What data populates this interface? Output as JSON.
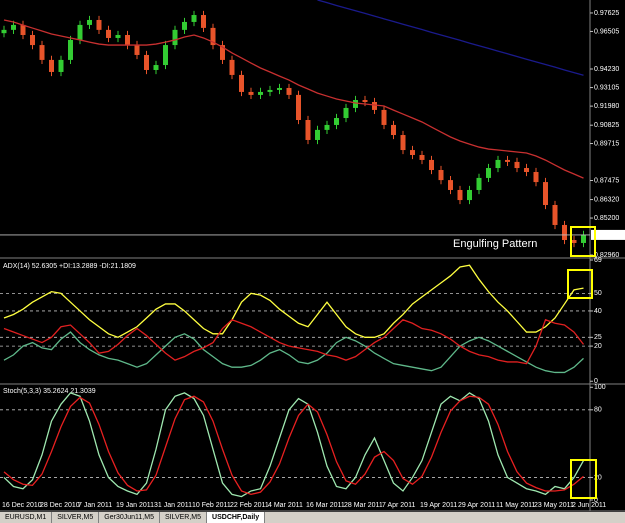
{
  "chart_data": [
    {
      "type": "candlestick",
      "up_color": "#33cc33",
      "down_color": "#e8542a",
      "open": [
        0.964,
        0.966,
        0.969,
        0.9629,
        0.9568,
        0.9478,
        0.9405,
        0.9478,
        0.9599,
        0.969,
        0.972,
        0.966,
        0.9611,
        0.9629,
        0.9568,
        0.9508,
        0.9417,
        0.9447,
        0.9568,
        0.966,
        0.9708,
        0.975,
        0.9672,
        0.9568,
        0.9478,
        0.9387,
        0.9284,
        0.9266,
        0.9284,
        0.9296,
        0.9308,
        0.9266,
        0.9114,
        0.8993,
        0.9054,
        0.9084,
        0.9126,
        0.9187,
        0.9235,
        0.9223,
        0.9175,
        0.9084,
        0.9023,
        0.8932,
        0.8902,
        0.8872,
        0.8811,
        0.875,
        0.869,
        0.8629,
        0.869,
        0.8763,
        0.8823,
        0.8872,
        0.886,
        0.8823,
        0.8799,
        0.8738,
        0.8599,
        0.8478,
        0.8387,
        0.8369
      ],
      "high": [
        0.9685,
        0.9715,
        0.9715,
        0.9654,
        0.9593,
        0.9503,
        0.9503,
        0.9624,
        0.9715,
        0.9745,
        0.9745,
        0.9685,
        0.9654,
        0.9654,
        0.9593,
        0.9533,
        0.9472,
        0.9593,
        0.9685,
        0.9733,
        0.9775,
        0.9775,
        0.9697,
        0.9593,
        0.9503,
        0.9412,
        0.9309,
        0.9309,
        0.9321,
        0.9333,
        0.9333,
        0.9291,
        0.9139,
        0.9079,
        0.9109,
        0.9151,
        0.9212,
        0.926,
        0.926,
        0.9248,
        0.92,
        0.9109,
        0.9048,
        0.8957,
        0.8927,
        0.8897,
        0.8836,
        0.8775,
        0.8715,
        0.8715,
        0.8788,
        0.8848,
        0.8897,
        0.8897,
        0.8885,
        0.8848,
        0.8824,
        0.8763,
        0.8624,
        0.8503,
        0.8412,
        0.8443
      ],
      "low": [
        0.9615,
        0.9635,
        0.9604,
        0.9543,
        0.9453,
        0.938,
        0.938,
        0.9453,
        0.9574,
        0.9665,
        0.9635,
        0.9586,
        0.9586,
        0.9543,
        0.9483,
        0.9392,
        0.9392,
        0.9422,
        0.9543,
        0.9635,
        0.9683,
        0.9647,
        0.9543,
        0.9453,
        0.9362,
        0.9259,
        0.9241,
        0.9241,
        0.9259,
        0.9271,
        0.9241,
        0.9089,
        0.8968,
        0.8968,
        0.9029,
        0.9059,
        0.9101,
        0.9162,
        0.9198,
        0.915,
        0.9059,
        0.8998,
        0.8907,
        0.8877,
        0.8847,
        0.8786,
        0.8725,
        0.8665,
        0.8604,
        0.8604,
        0.8665,
        0.8738,
        0.8798,
        0.8835,
        0.8798,
        0.8774,
        0.8713,
        0.8574,
        0.8453,
        0.8362,
        0.8344,
        0.8344
      ],
      "close": [
        0.966,
        0.969,
        0.9629,
        0.9568,
        0.9478,
        0.9405,
        0.9478,
        0.9599,
        0.969,
        0.972,
        0.966,
        0.9611,
        0.9629,
        0.9568,
        0.9508,
        0.9417,
        0.9447,
        0.9568,
        0.966,
        0.9708,
        0.975,
        0.9672,
        0.9568,
        0.9478,
        0.9387,
        0.9284,
        0.9266,
        0.9284,
        0.9296,
        0.9308,
        0.9266,
        0.9114,
        0.8993,
        0.9054,
        0.9084,
        0.9126,
        0.9187,
        0.9235,
        0.9223,
        0.9175,
        0.9084,
        0.9023,
        0.8932,
        0.8902,
        0.8872,
        0.8811,
        0.875,
        0.869,
        0.8629,
        0.869,
        0.8763,
        0.8823,
        0.8872,
        0.886,
        0.8823,
        0.8799,
        0.8738,
        0.8599,
        0.8478,
        0.8387,
        0.8369,
        0.8418
      ],
      "series": [
        {
          "color": "#c83030",
          "values": [
            0.972,
            0.9708,
            0.9689,
            0.9671,
            0.9653,
            0.9635,
            0.9623,
            0.9611,
            0.9599,
            0.9586,
            0.9574,
            0.9568,
            0.9568,
            0.9568,
            0.9568,
            0.9568,
            0.9574,
            0.9586,
            0.9599,
            0.9617,
            0.9629,
            0.9611,
            0.9586,
            0.9556,
            0.952,
            0.949,
            0.9459,
            0.9429,
            0.9405,
            0.938,
            0.9356,
            0.9326,
            0.9302,
            0.9277,
            0.9259,
            0.9241,
            0.9229,
            0.9217,
            0.9211,
            0.9205,
            0.9199,
            0.9174,
            0.915,
            0.9126,
            0.9102,
            0.9071,
            0.9041,
            0.9011,
            0.8987,
            0.8968,
            0.895,
            0.8938,
            0.8932,
            0.8926,
            0.892,
            0.8914,
            0.8896,
            0.8871,
            0.8841,
            0.8811,
            0.8787,
            0.8762
          ]
        },
        {
          "color": "#1a1a8c",
          "values": [
            null,
            null,
            null,
            null,
            null,
            null,
            null,
            null,
            null,
            null,
            null,
            null,
            null,
            null,
            null,
            null,
            null,
            null,
            null,
            null,
            null,
            null,
            null,
            null,
            null,
            null,
            null,
            null,
            null,
            null,
            null,
            null,
            null,
            0.9841,
            0.9825,
            0.9808,
            0.9792,
            0.9776,
            0.976,
            0.9743,
            0.9727,
            0.9711,
            0.9694,
            0.9678,
            0.9662,
            0.9645,
            0.9629,
            0.9613,
            0.9597,
            0.958,
            0.9564,
            0.9548,
            0.9531,
            0.9515,
            0.9499,
            0.9482,
            0.9466,
            0.945,
            0.9434,
            0.9417,
            0.9401,
            0.9385
          ]
        }
      ],
      "ylim": [
        0.8284,
        0.9841
      ],
      "yticks": [
        0.97625,
        0.96505,
        {
          "value": 0.9423,
          "label": "0.94230"
        },
        0.93105,
        {
          "value": 0.9198,
          "label": "0.91980"
        },
        0.90825,
        0.89715,
        0.87475,
        {
          "value": 0.8632,
          "label": "0.86320"
        },
        {
          "value": 0.852,
          "label": "0.85200"
        },
        {
          "value": 0.8296,
          "label": "0.82960"
        }
      ],
      "current_price": 0.84178,
      "annotation": "Engulfing Pattern"
    },
    {
      "type": "line",
      "title": "ADX(14) 52.6305 +DI:13.2889 -DI:21.1809",
      "series": [
        {
          "color": "#ffff40",
          "values": [
            36,
            38,
            41,
            45,
            48,
            51,
            50,
            45,
            40,
            35,
            31,
            27,
            25,
            28,
            31,
            36,
            41,
            44,
            44,
            40,
            35,
            30,
            27,
            27,
            35,
            45,
            50,
            49,
            46,
            41,
            37,
            33,
            31,
            38,
            45,
            38,
            31,
            27,
            25,
            25,
            27,
            33,
            38,
            44,
            48,
            52,
            56,
            60,
            65,
            66,
            58,
            51,
            45,
            40,
            34,
            28,
            28,
            31,
            36,
            44,
            52,
            53
          ]
        },
        {
          "color": "#5fb88a",
          "values": [
            12,
            15,
            20,
            22,
            19,
            18,
            24,
            28,
            22,
            18,
            15,
            13,
            12,
            10,
            8,
            10,
            15,
            20,
            25,
            27,
            24,
            18,
            14,
            10,
            8,
            8,
            9,
            12,
            16,
            18,
            15,
            11,
            10,
            12,
            16,
            22,
            25,
            23,
            20,
            16,
            13,
            10,
            9,
            8,
            7,
            6,
            8,
            14,
            20,
            23,
            25,
            23,
            20,
            17,
            14,
            11,
            8,
            6,
            5,
            5,
            8,
            13
          ]
        },
        {
          "color": "#e02020",
          "values": [
            30,
            28,
            26,
            24,
            22,
            25,
            31,
            32,
            27,
            22,
            16,
            17,
            21,
            26,
            30,
            26,
            21,
            16,
            12,
            14,
            17,
            19,
            22,
            30,
            35,
            33,
            31,
            28,
            25,
            22,
            20,
            19,
            18,
            17,
            15,
            14,
            12,
            14,
            18,
            22,
            25,
            30,
            35,
            33,
            30,
            29,
            27,
            24,
            20,
            17,
            15,
            14,
            12,
            11,
            11,
            10,
            20,
            35,
            33,
            32,
            28,
            21
          ]
        }
      ],
      "ylim": [
        -1,
        69
      ],
      "yticks": [
        69,
        50,
        40,
        25,
        20,
        0
      ],
      "levels": [
        50,
        40,
        25,
        20
      ]
    },
    {
      "type": "line",
      "title": "Stoch(5,3,3) 35.2624 21.3039",
      "categories": [
        "16 Dec 2010",
        null,
        null,
        null,
        "28 Dec 2010",
        null,
        null,
        null,
        "7 Jan 2011",
        null,
        null,
        null,
        "19 Jan 2011",
        null,
        null,
        null,
        "31 Jan 2011",
        null,
        null,
        null,
        "10 Feb 2011",
        null,
        null,
        null,
        "22 Feb 2011",
        null,
        null,
        null,
        "4 Mar 2011",
        null,
        null,
        null,
        "16 Mar 2011",
        null,
        null,
        null,
        "28 Mar 2011",
        null,
        null,
        null,
        "7 Apr 2011",
        null,
        null,
        null,
        "19 Apr 2011",
        null,
        null,
        null,
        "29 Apr 2011",
        null,
        null,
        null,
        "11 May 2011",
        null,
        null,
        null,
        "23 May 2011",
        null,
        null,
        null,
        "2 Jun 2011",
        null
      ],
      "series": [
        {
          "color": "#9fe8b0",
          "values": [
            20,
            12,
            10,
            18,
            40,
            70,
            85,
            95,
            92,
            70,
            40,
            20,
            12,
            8,
            5,
            15,
            45,
            80,
            92,
            95,
            90,
            75,
            45,
            15,
            5,
            3,
            8,
            10,
            30,
            55,
            80,
            90,
            85,
            60,
            30,
            12,
            10,
            20,
            40,
            55,
            35,
            15,
            8,
            20,
            35,
            60,
            85,
            92,
            88,
            95,
            90,
            70,
            40,
            20,
            15,
            10,
            8,
            5,
            12,
            10,
            20,
            35
          ]
        },
        {
          "color": "#e82020",
          "values": [
            25,
            18,
            14,
            13,
            23,
            43,
            65,
            83,
            91,
            86,
            67,
            43,
            24,
            13,
            8,
            9,
            22,
            47,
            72,
            89,
            92,
            87,
            70,
            45,
            22,
            8,
            5,
            7,
            16,
            32,
            55,
            75,
            85,
            78,
            58,
            34,
            17,
            14,
            23,
            38,
            43,
            35,
            19,
            14,
            21,
            38,
            60,
            79,
            88,
            92,
            91,
            85,
            67,
            43,
            25,
            15,
            11,
            8,
            8,
            9,
            14,
            21
          ]
        }
      ],
      "ylim": [
        0,
        102
      ],
      "yticks": [
        100,
        80,
        20,
        0
      ],
      "levels": [
        80,
        20
      ]
    }
  ],
  "tabs": [
    "EURUSD,M1",
    "SILVER,M5",
    "Ger30Jun11,M5",
    "SILVER,M5",
    "USDCHF,Daily"
  ]
}
